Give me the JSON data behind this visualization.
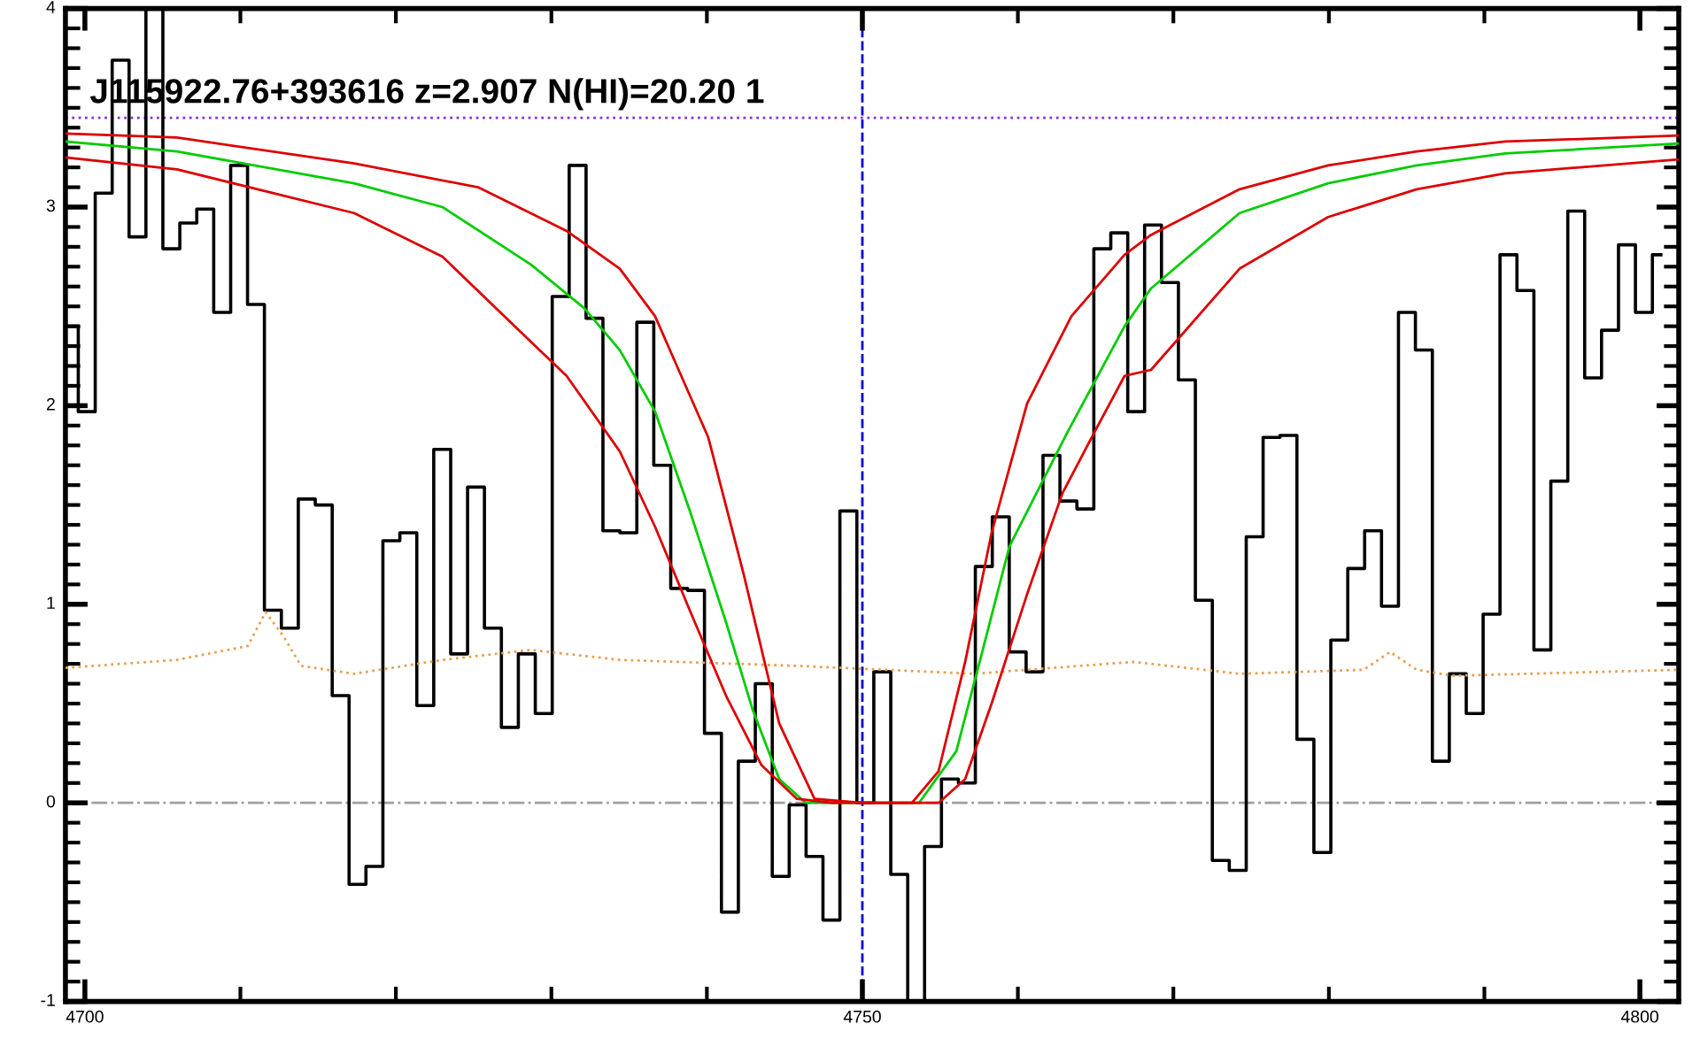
{
  "chart_data": {
    "type": "step",
    "title": "J115922.76+393616 z=2.907 N(HI)=20.20 1",
    "grid": false,
    "xlim": [
      4698.75,
      4802.5
    ],
    "ylim": [
      -1,
      4
    ],
    "xticks": [
      4700,
      {
        "value": 4710,
        "label": null
      },
      {
        "value": 4720,
        "label": null
      },
      {
        "value": 4730,
        "label": null
      },
      {
        "value": 4740,
        "label": null
      },
      4750,
      {
        "value": 4760,
        "label": null
      },
      {
        "value": 4770,
        "label": null
      },
      {
        "value": 4780,
        "label": null
      },
      {
        "value": 4790,
        "label": null
      },
      4800
    ],
    "yticks": [
      -1,
      {
        "value": -0.9,
        "label": null
      },
      {
        "value": -0.8,
        "label": null
      },
      {
        "value": -0.7,
        "label": null
      },
      {
        "value": -0.6,
        "label": null
      },
      {
        "value": -0.5,
        "label": null
      },
      {
        "value": -0.4,
        "label": null
      },
      {
        "value": -0.3,
        "label": null
      },
      {
        "value": -0.2,
        "label": null
      },
      {
        "value": -0.1,
        "label": null
      },
      0,
      {
        "value": 0.1,
        "label": null
      },
      {
        "value": 0.2,
        "label": null
      },
      {
        "value": 0.3,
        "label": null
      },
      {
        "value": 0.4,
        "label": null
      },
      {
        "value": 0.5,
        "label": null
      },
      {
        "value": 0.6,
        "label": null
      },
      {
        "value": 0.7,
        "label": null
      },
      {
        "value": 0.8,
        "label": null
      },
      {
        "value": 0.9,
        "label": null
      },
      1,
      {
        "value": 1.1,
        "label": null
      },
      {
        "value": 1.2,
        "label": null
      },
      {
        "value": 1.3,
        "label": null
      },
      {
        "value": 1.4,
        "label": null
      },
      {
        "value": 1.5,
        "label": null
      },
      {
        "value": 1.6,
        "label": null
      },
      {
        "value": 1.7,
        "label": null
      },
      {
        "value": 1.8,
        "label": null
      },
      {
        "value": 1.9,
        "label": null
      },
      2,
      {
        "value": 2.1,
        "label": null
      },
      {
        "value": 2.2,
        "label": null
      },
      {
        "value": 2.3,
        "label": null
      },
      {
        "value": 2.4,
        "label": null
      },
      {
        "value": 2.5,
        "label": null
      },
      {
        "value": 2.6,
        "label": null
      },
      {
        "value": 2.7,
        "label": null
      },
      {
        "value": 2.8,
        "label": null
      },
      {
        "value": 2.9,
        "label": null
      },
      3,
      {
        "value": 3.1,
        "label": null
      },
      {
        "value": 3.2,
        "label": null
      },
      {
        "value": 3.3,
        "label": null
      },
      {
        "value": 3.4,
        "label": null
      },
      {
        "value": 3.5,
        "label": null
      },
      {
        "value": 3.6,
        "label": null
      },
      {
        "value": 3.7,
        "label": null
      },
      {
        "value": 3.8,
        "label": null
      },
      {
        "value": 3.9,
        "label": null
      },
      4
    ],
    "ref_lines": [
      {
        "axis": "y",
        "value": 0,
        "color": "#a0a0a0",
        "line_style": "dashdot"
      },
      {
        "axis": "x",
        "value": 4750,
        "color": "#0000cc",
        "line_style": "dashed"
      },
      {
        "axis": "y",
        "value": 3.45,
        "color": "#8833dd",
        "line_style": "dotted"
      }
    ],
    "series": [
      {
        "type": "line",
        "color": "#e8a050",
        "line_style": "dotted",
        "x": [
          4698.75,
          4705.92,
          4710.48,
          4711.62,
          4712.76,
          4713.9,
          4717.31,
          4723.0,
          4728.7,
          4734.4,
          4745.79,
          4757.18,
          4767.43,
          4774.26,
          4782.23,
          4783.94,
          4785.65,
          4787.93,
          4802.5
        ],
        "values": [
          0.68,
          0.72,
          0.79,
          0.96,
          0.84,
          0.69,
          0.65,
          0.72,
          0.77,
          0.72,
          0.69,
          0.65,
          0.71,
          0.65,
          0.67,
          0.76,
          0.67,
          0.64,
          0.67
        ]
      },
      {
        "color": "#000000",
        "line_style": "solid",
        "x": [
          4699.03,
          4700.12,
          4701.21,
          4702.3,
          4703.38,
          4704.47,
          4705.56,
          4706.65,
          4707.74,
          4708.83,
          4709.92,
          4711.0,
          4712.09,
          4713.18,
          4714.27,
          4715.36,
          4716.45,
          4717.53,
          4718.62,
          4719.71,
          4720.8,
          4721.89,
          4722.98,
          4724.07,
          4725.15,
          4726.24,
          4727.33,
          4728.42,
          4729.51,
          4730.6,
          4731.69,
          4732.77,
          4733.86,
          4734.95,
          4736.04,
          4737.13,
          4738.22,
          4739.3,
          4740.39,
          4741.48,
          4742.57,
          4743.66,
          4744.75,
          4745.84,
          4746.92,
          4748.01,
          4749.1,
          4750.19,
          4751.28,
          4752.37,
          4753.46,
          4754.54,
          4755.63,
          4756.72,
          4757.81,
          4758.9,
          4759.99,
          4761.07,
          4762.16,
          4763.25,
          4764.34,
          4765.43,
          4766.52,
          4767.61,
          4768.69,
          4769.78,
          4770.87,
          4771.96,
          4773.05,
          4774.14,
          4775.23,
          4776.31,
          4777.4,
          4778.49,
          4779.58,
          4780.67,
          4781.76,
          4782.84,
          4783.93,
          4785.02,
          4786.11,
          4787.2,
          4788.29,
          4789.38,
          4790.46,
          4791.55,
          4792.64,
          4793.73,
          4794.82,
          4795.91,
          4796.99,
          4798.08,
          4799.17,
          4800.26,
          4801.35
        ],
        "values": [
          2.4,
          1.97,
          3.07,
          3.74,
          2.85,
          4.0,
          2.79,
          2.92,
          2.99,
          2.47,
          3.21,
          2.51,
          0.97,
          0.88,
          1.53,
          1.5,
          0.54,
          -0.41,
          -0.32,
          1.32,
          1.36,
          0.49,
          1.78,
          0.75,
          1.59,
          0.88,
          0.38,
          0.75,
          0.45,
          2.55,
          3.21,
          2.44,
          1.37,
          1.36,
          2.42,
          1.7,
          1.08,
          1.07,
          0.35,
          -0.55,
          0.21,
          0.6,
          -0.37,
          -0.01,
          -0.27,
          -0.59,
          1.47,
          0.0,
          0.66,
          -0.36,
          -1.0,
          -0.22,
          0.12,
          0.1,
          1.19,
          1.44,
          0.76,
          0.66,
          1.75,
          1.52,
          1.48,
          2.79,
          2.87,
          1.97,
          2.91,
          2.62,
          2.13,
          1.02,
          -0.29,
          -0.34,
          1.34,
          1.84,
          1.85,
          0.32,
          -0.25,
          0.82,
          1.18,
          1.37,
          0.99,
          2.47,
          2.28,
          0.21,
          0.65,
          0.45,
          0.95,
          2.76,
          2.58,
          0.77,
          1.62,
          2.98,
          2.14,
          2.38,
          2.81,
          2.47,
          2.76
        ]
      },
      {
        "type": "line",
        "color": "#00cc00",
        "line_style": "solid",
        "x": [
          4698.75,
          4705.92,
          4717.31,
          4723.0,
          4728.7,
          4732.12,
          4734.4,
          4736.67,
          4738.95,
          4741.23,
          4742.94,
          4744.65,
          4746.36,
          4750.0,
          4753.64,
          4756.04,
          4757.74,
          4759.45,
          4763.21,
          4766.86,
          4768.56,
          4774.26,
          4779.95,
          4785.65,
          4791.34,
          4802.5
        ],
        "values": [
          3.33,
          3.28,
          3.12,
          3.0,
          2.71,
          2.49,
          2.28,
          1.97,
          1.46,
          0.91,
          0.47,
          0.12,
          0.0,
          0.0,
          0.0,
          0.26,
          0.77,
          1.29,
          1.87,
          2.4,
          2.59,
          2.97,
          3.12,
          3.21,
          3.27,
          3.32
        ]
      },
      {
        "type": "line",
        "color": "#dd0000",
        "line_style": "solid",
        "x": [
          4698.75,
          4705.92,
          4717.31,
          4725.28,
          4730.98,
          4734.4,
          4736.67,
          4740.09,
          4742.37,
          4744.65,
          4746.92,
          4750.0,
          4753.19,
          4754.9,
          4756.61,
          4758.31,
          4760.59,
          4763.44,
          4766.86,
          4768.56,
          4774.26,
          4779.95,
          4785.65,
          4791.34,
          4802.5
        ],
        "values": [
          3.37,
          3.35,
          3.22,
          3.1,
          2.88,
          2.69,
          2.45,
          1.84,
          1.15,
          0.4,
          0.02,
          0.0,
          0.0,
          0.16,
          0.71,
          1.36,
          2.01,
          2.45,
          2.76,
          2.86,
          3.09,
          3.21,
          3.28,
          3.33,
          3.36
        ]
      },
      {
        "type": "line",
        "color": "#dd0000",
        "line_style": "solid",
        "x": [
          4698.75,
          4705.92,
          4717.31,
          4723.0,
          4728.7,
          4730.98,
          4734.4,
          4736.67,
          4738.95,
          4741.23,
          4743.51,
          4745.79,
          4748.06,
          4750.0,
          4754.9,
          4756.61,
          4758.31,
          4760.59,
          4762.87,
          4765.15,
          4766.86,
          4768.56,
          4774.26,
          4779.95,
          4785.65,
          4791.34,
          4802.5
        ],
        "values": [
          3.25,
          3.19,
          2.97,
          2.75,
          2.32,
          2.15,
          1.77,
          1.39,
          0.96,
          0.54,
          0.19,
          0.02,
          0.0,
          0.0,
          0.0,
          0.12,
          0.5,
          1.05,
          1.56,
          1.9,
          2.15,
          2.18,
          2.69,
          2.95,
          3.09,
          3.17,
          3.24
        ]
      }
    ]
  }
}
